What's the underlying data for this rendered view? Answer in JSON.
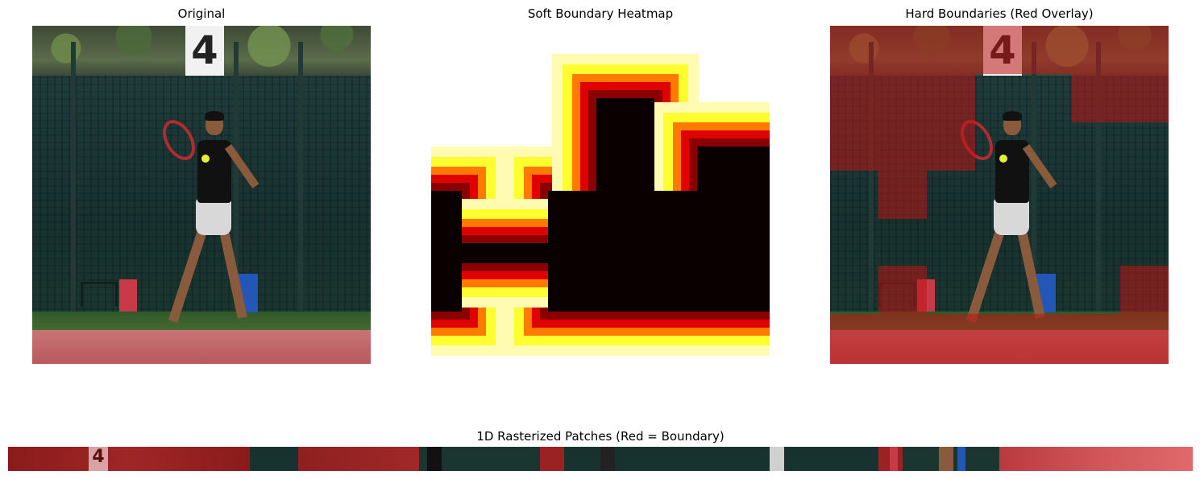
{
  "titles": {
    "original": "Original",
    "heatmap": "Soft Boundary Heatmap",
    "overlay": "Hard Boundaries (Red Overlay)",
    "strip": "1D Rasterized Patches (Red = Boundary)"
  },
  "photo": {
    "sign_number": "4"
  },
  "strip_sign": "4",
  "colors": {
    "boundary_overlay": "#be1414",
    "heat_low": "#0a0000",
    "heat_mid": "#e00000",
    "heat_high": "#ffff30",
    "fence": "#17322f",
    "court": "#c77475"
  }
}
